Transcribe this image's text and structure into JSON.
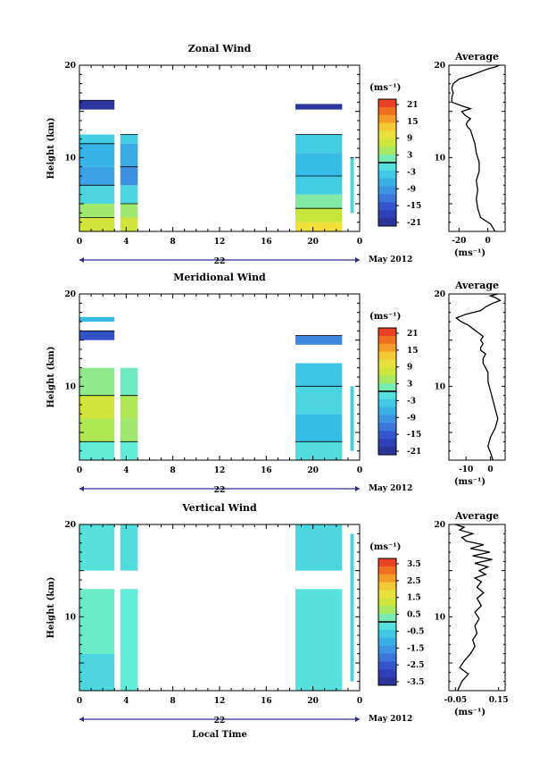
{
  "chart_data": [
    {
      "type": "heatmap",
      "title": "Zonal Wind",
      "ylabel": "Height (km)",
      "yticks": [
        "20",
        "10"
      ],
      "xticks": [
        "0",
        "4",
        "8",
        "12",
        "16",
        "20",
        "0"
      ],
      "date_label": "22",
      "month_label": "May 2012",
      "ylim": [
        2,
        20
      ],
      "xlim": [
        0,
        24
      ],
      "colorbar": {
        "unit": "(ms⁻¹)",
        "labels": [
          "21",
          "15",
          "9",
          "3",
          "-3",
          "-9",
          "-15",
          "-21"
        ],
        "marker_value": 0
      },
      "data_blocks": [
        {
          "x": [
            0.0,
            3.0
          ],
          "y": [
            2.0,
            3.5
          ],
          "value": 8
        },
        {
          "x": [
            0.0,
            3.0
          ],
          "y": [
            3.5,
            5.0
          ],
          "value": 4
        },
        {
          "x": [
            0.0,
            3.0
          ],
          "y": [
            5.0,
            7.0
          ],
          "value": -3
        },
        {
          "x": [
            0.0,
            3.0
          ],
          "y": [
            7.0,
            9.0
          ],
          "value": -9
        },
        {
          "x": [
            0.0,
            3.0
          ],
          "y": [
            9.0,
            11.5
          ],
          "value": -7
        },
        {
          "x": [
            0.0,
            3.0
          ],
          "y": [
            11.5,
            12.5
          ],
          "value": -4
        },
        {
          "x": [
            0.0,
            3.0
          ],
          "y": [
            15.2,
            16.2
          ],
          "value": -22
        },
        {
          "x": [
            3.5,
            5.0
          ],
          "y": [
            2.0,
            3.5
          ],
          "value": 8
        },
        {
          "x": [
            3.5,
            5.0
          ],
          "y": [
            3.5,
            5.0
          ],
          "value": 4
        },
        {
          "x": [
            3.5,
            5.0
          ],
          "y": [
            5.0,
            7.0
          ],
          "value": -3
        },
        {
          "x": [
            3.5,
            5.0
          ],
          "y": [
            7.0,
            9.0
          ],
          "value": -11
        },
        {
          "x": [
            3.5,
            5.0
          ],
          "y": [
            9.0,
            11.5
          ],
          "value": -8
        },
        {
          "x": [
            3.5,
            5.0
          ],
          "y": [
            11.5,
            12.5
          ],
          "value": -4
        },
        {
          "x": [
            18.5,
            22.5
          ],
          "y": [
            2.0,
            3.0
          ],
          "value": 12
        },
        {
          "x": [
            18.5,
            22.5
          ],
          "y": [
            3.0,
            4.5
          ],
          "value": 7
        },
        {
          "x": [
            18.5,
            22.5
          ],
          "y": [
            4.5,
            6.0
          ],
          "value": 2
        },
        {
          "x": [
            18.5,
            22.5
          ],
          "y": [
            6.0,
            8.0
          ],
          "value": -4
        },
        {
          "x": [
            18.5,
            22.5
          ],
          "y": [
            8.0,
            10.5
          ],
          "value": -6
        },
        {
          "x": [
            18.5,
            22.5
          ],
          "y": [
            10.5,
            12.5
          ],
          "value": -4
        },
        {
          "x": [
            18.5,
            22.5
          ],
          "y": [
            15.2,
            15.8
          ],
          "value": -22
        },
        {
          "x": [
            23.2,
            23.5
          ],
          "y": [
            4.0,
            10.0
          ],
          "value": -3
        }
      ]
    },
    {
      "type": "line",
      "title": "Average",
      "xlabel": "(ms⁻¹)",
      "xticks": [
        "-20",
        "0"
      ],
      "yticks": [
        "20",
        "10"
      ],
      "xlim": [
        -27,
        12
      ],
      "ylim": [
        2,
        20
      ],
      "x": [
        5,
        2,
        -5,
        -7,
        -8,
        -7,
        -8,
        -6,
        -6,
        -8,
        -9,
        -10,
        -11,
        -12,
        -14,
        -15,
        -14,
        -12,
        -16,
        -18,
        -12,
        -18,
        -25,
        -25,
        -24,
        -25,
        -24,
        -20,
        -12,
        -5,
        0,
        5,
        8
      ],
      "y": [
        2.0,
        2.8,
        3.5,
        4.5,
        5.5,
        6.5,
        7.5,
        8.5,
        9.5,
        10.5,
        11.5,
        12.0,
        12.5,
        13.0,
        13.3,
        13.6,
        13.9,
        14.2,
        14.6,
        15.0,
        15.3,
        15.6,
        16.0,
        16.5,
        17.0,
        17.5,
        18.0,
        18.5,
        18.9,
        19.3,
        19.6,
        19.8,
        20.0
      ]
    },
    {
      "type": "heatmap",
      "title": "Meridional Wind",
      "ylabel": "Height (km)",
      "yticks": [
        "20",
        "10"
      ],
      "xticks": [
        "0",
        "4",
        "8",
        "12",
        "16",
        "20",
        "0"
      ],
      "date_label": "22",
      "month_label": "May 2012",
      "ylim": [
        2,
        20
      ],
      "xlim": [
        0,
        24
      ],
      "colorbar": {
        "unit": "(ms⁻¹)",
        "labels": [
          "21",
          "15",
          "9",
          "3",
          "-3",
          "-9",
          "-15",
          "-21"
        ],
        "marker_value": 0
      },
      "data_blocks": [
        {
          "x": [
            0.0,
            3.0
          ],
          "y": [
            2.0,
            4.0
          ],
          "value": 0
        },
        {
          "x": [
            0.0,
            3.0
          ],
          "y": [
            4.0,
            6.5
          ],
          "value": 5
        },
        {
          "x": [
            0.0,
            3.0
          ],
          "y": [
            6.5,
            9.0
          ],
          "value": 8
        },
        {
          "x": [
            0.0,
            3.0
          ],
          "y": [
            9.0,
            12.0
          ],
          "value": 3
        },
        {
          "x": [
            0.0,
            3.0
          ],
          "y": [
            15.0,
            16.0
          ],
          "value": -17
        },
        {
          "x": [
            0.0,
            3.0
          ],
          "y": [
            17.0,
            17.5
          ],
          "value": -6
        },
        {
          "x": [
            3.5,
            5.0
          ],
          "y": [
            2.0,
            4.0
          ],
          "value": 0
        },
        {
          "x": [
            3.5,
            5.0
          ],
          "y": [
            4.0,
            6.5
          ],
          "value": 4
        },
        {
          "x": [
            3.5,
            5.0
          ],
          "y": [
            6.5,
            9.0
          ],
          "value": 5
        },
        {
          "x": [
            3.5,
            5.0
          ],
          "y": [
            9.0,
            12.0
          ],
          "value": 1
        },
        {
          "x": [
            18.5,
            22.5
          ],
          "y": [
            2.0,
            4.0
          ],
          "value": -2
        },
        {
          "x": [
            18.5,
            22.5
          ],
          "y": [
            4.0,
            7.0
          ],
          "value": -6
        },
        {
          "x": [
            18.5,
            22.5
          ],
          "y": [
            7.0,
            10.0
          ],
          "value": -3
        },
        {
          "x": [
            18.5,
            22.5
          ],
          "y": [
            10.0,
            12.5
          ],
          "value": -5
        },
        {
          "x": [
            18.5,
            22.5
          ],
          "y": [
            14.5,
            15.5
          ],
          "value": -12
        },
        {
          "x": [
            23.2,
            23.5
          ],
          "y": [
            3.0,
            10.0
          ],
          "value": -4
        }
      ]
    },
    {
      "type": "line",
      "title": "Average",
      "xlabel": "(ms⁻¹)",
      "xticks": [
        "-10",
        "0"
      ],
      "yticks": [
        "20",
        "10"
      ],
      "xlim": [
        -17,
        6
      ],
      "ylim": [
        2,
        20
      ],
      "x": [
        1,
        0,
        -1,
        0,
        2,
        3,
        2,
        1,
        0,
        -1,
        -1,
        -2,
        -3,
        -3,
        -2,
        -4,
        -4,
        -3,
        -4,
        -3,
        -5,
        -7,
        -9,
        -12,
        -14,
        -10,
        -4,
        -2,
        1,
        4,
        2,
        0,
        3
      ],
      "y": [
        2.0,
        2.8,
        3.5,
        4.5,
        5.5,
        6.5,
        7.5,
        8.5,
        9.5,
        10.5,
        11.5,
        12.0,
        12.5,
        13.0,
        13.5,
        13.9,
        14.2,
        14.6,
        15.0,
        15.4,
        15.8,
        16.2,
        16.6,
        17.0,
        17.4,
        17.8,
        18.2,
        18.6,
        19.0,
        19.3,
        19.6,
        19.8,
        20.0
      ]
    },
    {
      "type": "heatmap",
      "title": "Vertical Wind",
      "ylabel": "Height (km)",
      "yticks": [
        "20",
        "10"
      ],
      "xticks": [
        "0",
        "4",
        "8",
        "12",
        "16",
        "20",
        "0"
      ],
      "date_label": "22",
      "month_label": "May 2012",
      "xlabel": "Local Time",
      "ylim": [
        2,
        20
      ],
      "xlim": [
        0,
        24
      ],
      "colorbar": {
        "unit": "(ms⁻¹)",
        "labels": [
          "3.5",
          "2.5",
          "1.5",
          "0.5",
          "-0.5",
          "-1.5",
          "-2.5",
          "-3.5"
        ],
        "marker_value": 0
      },
      "data_blocks": [
        {
          "x": [
            0.0,
            3.0
          ],
          "y": [
            2.0,
            6.0
          ],
          "value": -0.4
        },
        {
          "x": [
            0.0,
            3.0
          ],
          "y": [
            6.0,
            13.0
          ],
          "value": 0.1
        },
        {
          "x": [
            0.0,
            3.0
          ],
          "y": [
            15.0,
            20.0
          ],
          "value": -0.2
        },
        {
          "x": [
            3.5,
            5.0
          ],
          "y": [
            2.0,
            13.0
          ],
          "value": 0.0
        },
        {
          "x": [
            3.5,
            5.0
          ],
          "y": [
            15.0,
            20.0
          ],
          "value": -0.3
        },
        {
          "x": [
            18.5,
            22.5
          ],
          "y": [
            2.0,
            13.0
          ],
          "value": -0.2
        },
        {
          "x": [
            18.5,
            22.5
          ],
          "y": [
            15.0,
            20.0
          ],
          "value": -0.4
        },
        {
          "x": [
            23.2,
            23.5
          ],
          "y": [
            3.0,
            19.0
          ],
          "value": -0.5
        }
      ]
    },
    {
      "type": "line",
      "title": "Average",
      "xlabel": "(ms⁻¹)",
      "xticks": [
        "-0.05",
        "0.15"
      ],
      "yticks": [
        "20",
        "10"
      ],
      "xlim": [
        -0.08,
        0.18
      ],
      "ylim": [
        2,
        20
      ],
      "x": [
        -0.04,
        -0.02,
        0.01,
        -0.03,
        -0.01,
        0.02,
        0.04,
        0.03,
        0.05,
        0.04,
        0.06,
        0.04,
        0.07,
        0.05,
        0.08,
        0.05,
        0.07,
        0.04,
        0.09,
        0.06,
        0.1,
        0.04,
        0.12,
        0.03,
        0.11,
        0.02,
        0.08,
        0.0,
        -0.02,
        0.03,
        -0.03,
        -0.01,
        -0.05
      ],
      "y": [
        2.0,
        3.0,
        3.8,
        4.5,
        5.2,
        6.0,
        6.8,
        7.5,
        8.2,
        9.0,
        9.8,
        10.5,
        11.2,
        12.0,
        12.6,
        13.2,
        13.8,
        14.2,
        14.6,
        15.0,
        15.4,
        15.8,
        16.2,
        16.6,
        17.0,
        17.4,
        17.8,
        18.2,
        18.6,
        19.0,
        19.4,
        19.7,
        20.0
      ]
    }
  ]
}
